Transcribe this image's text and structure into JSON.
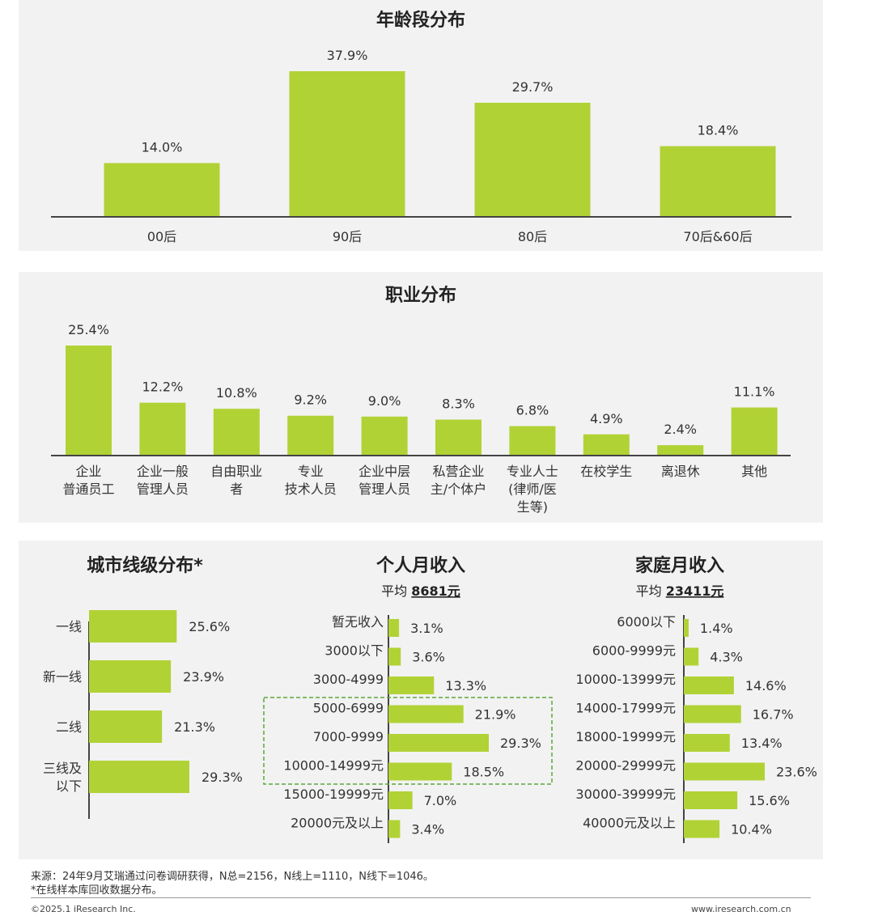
{
  "chart_data": [
    {
      "type": "bar",
      "title": "年龄段分布",
      "categories": [
        "00后",
        "90后",
        "80后",
        "70后&60后"
      ],
      "values": [
        14.0,
        37.9,
        29.7,
        18.4
      ],
      "labels": [
        "14.0%",
        "37.9%",
        "29.7%",
        "18.4%"
      ],
      "ylim": [
        0,
        40
      ]
    },
    {
      "type": "bar",
      "title": "职业分布",
      "categories": [
        "企业\n普通员工",
        "企业一般\n管理人员",
        "自由职业\n者",
        "专业\n技术人员",
        "企业中层\n管理人员",
        "私营企业\n主/个体户",
        "专业人士\n(律师/医\n生等)",
        "在校学生",
        "离退休",
        "其他"
      ],
      "values": [
        25.4,
        12.2,
        10.8,
        9.2,
        9.0,
        8.3,
        6.8,
        4.9,
        2.4,
        11.1
      ],
      "labels": [
        "25.4%",
        "12.2%",
        "10.8%",
        "9.2%",
        "9.0%",
        "8.3%",
        "6.8%",
        "4.9%",
        "2.4%",
        "11.1%"
      ],
      "ylim": [
        0,
        26
      ]
    },
    {
      "type": "bar",
      "orientation": "horizontal",
      "title": "城市线级分布*",
      "categories": [
        "一线",
        "新一线",
        "二线",
        "三线及\n以下"
      ],
      "values": [
        25.6,
        23.9,
        21.3,
        29.3
      ],
      "labels": [
        "25.6%",
        "23.9%",
        "21.3%",
        "29.3%"
      ]
    },
    {
      "type": "bar",
      "orientation": "horizontal",
      "title": "个人月收入",
      "subtitle_prefix": "平均",
      "subtitle_value": "8681元",
      "categories": [
        "暂无收入",
        "3000以下",
        "3000-4999",
        "5000-6999",
        "7000-9999",
        "10000-14999元",
        "15000-19999元",
        "20000元及以上"
      ],
      "values": [
        3.1,
        3.6,
        13.3,
        21.9,
        29.3,
        18.5,
        7.0,
        3.4
      ],
      "labels": [
        "3.1%",
        "3.6%",
        "13.3%",
        "21.9%",
        "29.3%",
        "18.5%",
        "7.0%",
        "3.4%"
      ],
      "highlight": [
        "5000-6999",
        "7000-9999",
        "10000-14999元"
      ]
    },
    {
      "type": "bar",
      "orientation": "horizontal",
      "title": "家庭月收入",
      "subtitle_prefix": "平均",
      "subtitle_value": "23411元",
      "categories": [
        "6000以下",
        "6000-9999元",
        "10000-13999元",
        "14000-17999元",
        "18000-19999元",
        "20000-29999元",
        "30000-39999元",
        "40000元及以上"
      ],
      "values": [
        1.4,
        4.3,
        14.6,
        16.7,
        13.4,
        23.6,
        15.6,
        10.4
      ],
      "labels": [
        "1.4%",
        "4.3%",
        "14.6%",
        "16.7%",
        "13.4%",
        "23.6%",
        "15.6%",
        "10.4%"
      ]
    }
  ],
  "footer": {
    "source": "来源：24年9月艾瑞通过问卷调研获得，N总=2156，N线上=1110，N线下=1046。",
    "note": "*在线样本库回收数据分布。",
    "copyright": "©2025.1 iResearch Inc.",
    "website": "www.iresearch.com.cn"
  },
  "colors": {
    "bar": "#b1d235",
    "panel": "#f2f2f2",
    "highlight_border": "#5aa83a"
  }
}
